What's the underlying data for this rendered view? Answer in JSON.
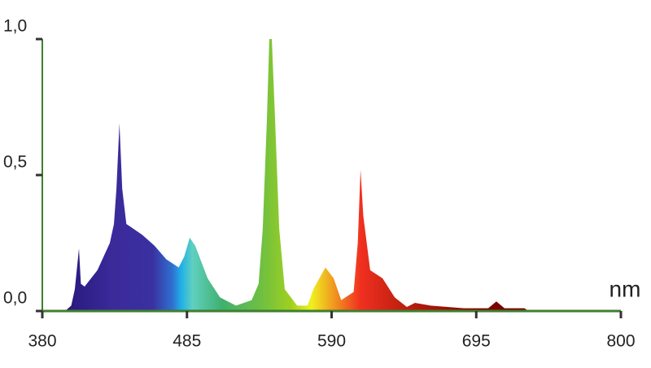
{
  "chart_data": {
    "type": "area",
    "x_label": "nm",
    "x": [
      380,
      396.5,
      401,
      403.6,
      406.6,
      408,
      410.7,
      420,
      429,
      432,
      433.8,
      436,
      438,
      441,
      444,
      452.6,
      461.5,
      470,
      479,
      483,
      487,
      491,
      500,
      509,
      520.6,
      532,
      537,
      540,
      543,
      544.8,
      546.6,
      549,
      552,
      556,
      565,
      572.6,
      576.7,
      585.5,
      591.5,
      597,
      606,
      609,
      611,
      613,
      618,
      627,
      635.8,
      644.6,
      650.5,
      662,
      686,
      703.7,
      709.6,
      715.5,
      730,
      733,
      762.7,
      800
    ],
    "values": [
      0,
      0,
      0.02,
      0.08,
      0.23,
      0.1,
      0.09,
      0.15,
      0.25,
      0.32,
      0.45,
      0.69,
      0.45,
      0.32,
      0.31,
      0.28,
      0.24,
      0.19,
      0.16,
      0.2,
      0.27,
      0.24,
      0.12,
      0.05,
      0.02,
      0.04,
      0.1,
      0.3,
      0.7,
      1.0,
      1.0,
      0.7,
      0.3,
      0.08,
      0.02,
      0.02,
      0.08,
      0.16,
      0.12,
      0.04,
      0.07,
      0.25,
      0.52,
      0.35,
      0.15,
      0.12,
      0.05,
      0.015,
      0.03,
      0.02,
      0.01,
      0.01,
      0.035,
      0.01,
      0.01,
      0,
      0,
      0
    ],
    "xlim": [
      380,
      800
    ],
    "xticks": [
      380,
      485,
      590,
      695,
      800
    ],
    "ylim": [
      0,
      1
    ],
    "yticks": [
      {
        "value": 0,
        "label": "0,0"
      },
      {
        "value": 0.5,
        "label": "0,5"
      },
      {
        "value": 1,
        "label": "1,0"
      }
    ],
    "axis_color": "#3f7f2f"
  }
}
